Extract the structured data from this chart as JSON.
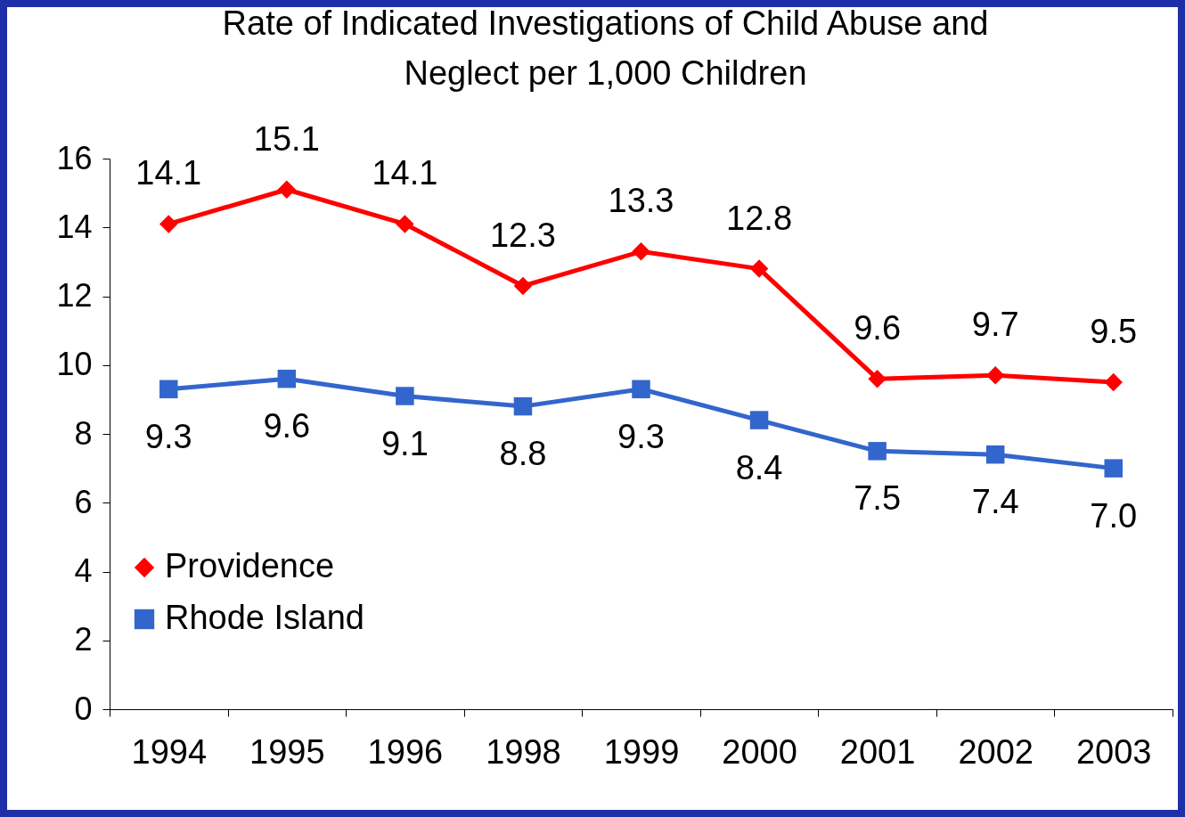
{
  "chart_data": {
    "type": "line",
    "title": "Rate of Indicated Investigations of Child Abuse and\nNeglect per 1,000 Children",
    "categories": [
      "1994",
      "1995",
      "1996",
      "1998",
      "1999",
      "2000",
      "2001",
      "2002",
      "2003"
    ],
    "series": [
      {
        "name": "Providence",
        "color": "#ff0000",
        "marker": "diamond",
        "values": [
          14.1,
          15.1,
          14.1,
          12.3,
          13.3,
          12.8,
          9.6,
          9.7,
          9.5
        ],
        "value_labels": [
          "14.1",
          "15.1",
          "14.1",
          "12.3",
          "13.3",
          "12.8",
          "9.6",
          "9.7",
          "9.5"
        ]
      },
      {
        "name": "Rhode Island",
        "color": "#3366cc",
        "marker": "square",
        "values": [
          9.3,
          9.6,
          9.1,
          8.8,
          9.3,
          8.4,
          7.5,
          7.4,
          7.0
        ],
        "value_labels": [
          "9.3",
          "9.6",
          "9.1",
          "8.8",
          "9.3",
          "8.4",
          "7.5",
          "7.4",
          "7.0"
        ]
      }
    ],
    "ylim": [
      0,
      16
    ],
    "yticks": [
      0,
      2,
      4,
      6,
      8,
      10,
      12,
      14,
      16
    ],
    "grid": false,
    "legend": "bottom left"
  }
}
